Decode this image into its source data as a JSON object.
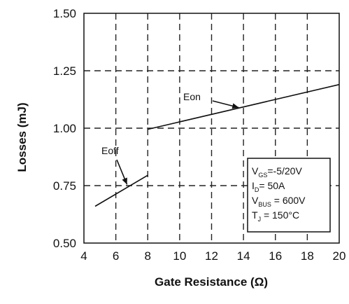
{
  "chart_data": {
    "type": "line",
    "xlabel": "Gate Resistance (Ω)",
    "ylabel": "Losses (mJ)",
    "xlim": [
      4,
      20
    ],
    "ylim": [
      0.5,
      1.5
    ],
    "x_ticks": [
      "4",
      "6",
      "8",
      "10",
      "12",
      "14",
      "16",
      "18",
      "20"
    ],
    "y_ticks": [
      "0.50",
      "0.75",
      "1.00",
      "1.25",
      "1.50"
    ],
    "x_tick_values": [
      4,
      6,
      8,
      10,
      12,
      14,
      16,
      18,
      20
    ],
    "y_tick_values": [
      0.5,
      0.75,
      1.0,
      1.25,
      1.5
    ],
    "grid": true,
    "series": [
      {
        "name": "Eon",
        "x": [
          8,
          20
        ],
        "y": [
          0.995,
          1.19
        ]
      },
      {
        "name": "Eoff",
        "x": [
          4.7,
          8
        ],
        "y": [
          0.66,
          0.795
        ]
      }
    ],
    "annotations": [
      {
        "text": "Eon",
        "series": "Eon",
        "arrow_to": [
          13.7,
          1.09
        ]
      },
      {
        "text": "Eoff",
        "series": "Eoff",
        "arrow_to": [
          6.7,
          0.755
        ]
      }
    ],
    "conditions": [
      {
        "main": "V",
        "sub": "GS",
        "rest": "=-5/20V"
      },
      {
        "main": "I",
        "sub": "D",
        "rest": "= 50A"
      },
      {
        "main": "V",
        "sub": "BUS",
        "rest": " = 600V"
      },
      {
        "main": "T",
        "sub": "J",
        "rest": " = 150°C"
      }
    ]
  }
}
